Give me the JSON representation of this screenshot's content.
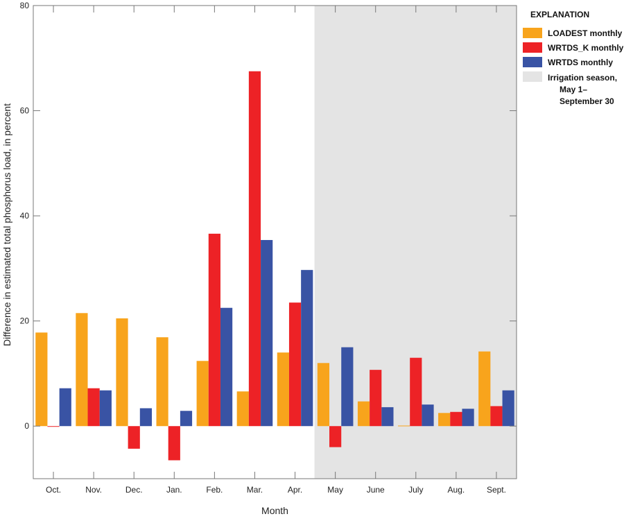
{
  "chart_data": {
    "type": "bar",
    "xlabel": "Month",
    "ylabel": "Difference in estimated total phosphorus load, in percent",
    "ylim": [
      -10,
      80
    ],
    "yticks": [
      0,
      20,
      40,
      60,
      80
    ],
    "grid": false,
    "legend_position": "right",
    "legend_title": "EXPLANATION",
    "categories": [
      "Oct.",
      "Nov.",
      "Dec.",
      "Jan.",
      "Feb.",
      "Mar.",
      "Apr.",
      "May",
      "June",
      "July",
      "Aug.",
      "Sept."
    ],
    "series": [
      {
        "name": "LOADEST monthly",
        "color": "#f8a41c",
        "values": [
          17.8,
          21.5,
          20.5,
          16.9,
          12.4,
          6.6,
          14.0,
          12.0,
          4.7,
          0.1,
          2.5,
          14.2
        ]
      },
      {
        "name": "WRTDS_K monthly",
        "color": "#ed2226",
        "values": [
          -0.1,
          7.2,
          -4.3,
          -6.5,
          36.6,
          67.5,
          23.5,
          -4.0,
          10.7,
          13.0,
          2.7,
          3.8
        ]
      },
      {
        "name": "WRTDS monthly",
        "color": "#3953a4",
        "values": [
          7.2,
          6.8,
          3.4,
          2.9,
          22.5,
          35.4,
          29.7,
          15.0,
          3.6,
          4.1,
          3.3,
          6.8
        ]
      }
    ],
    "shaded_region": {
      "label": "Irrigation season, May 1–September 30",
      "label_lines": [
        "Irrigation season,",
        "May 1–",
        "September 30"
      ],
      "from": "May",
      "to": "Sept.",
      "color": "#e4e4e4"
    }
  }
}
